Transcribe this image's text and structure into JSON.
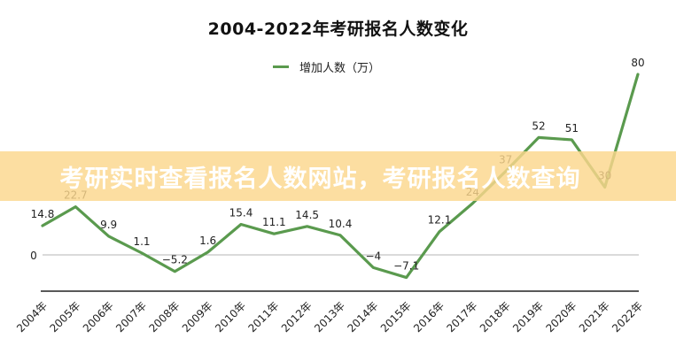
{
  "title": "2004-2022年考研报名人数变化",
  "legend": {
    "label": "增加人数（万）",
    "color": "#5a9a4e"
  },
  "banner": {
    "text": "考研实时查看报名人数网站，考研报名人数查询"
  },
  "axis": {
    "zero_label": "0"
  },
  "chart_data": {
    "type": "line",
    "title": "2004-2022年考研报名人数变化",
    "xlabel": "",
    "ylabel": "",
    "categories": [
      "2004年",
      "2005年",
      "2006年",
      "2007年",
      "2008年",
      "2009年",
      "2010年",
      "2011年",
      "2012年",
      "2013年",
      "2014年",
      "2015年",
      "2016年",
      "2017年",
      "2018年",
      "2019年",
      "2020年",
      "2021年",
      "2022年"
    ],
    "series": [
      {
        "name": "增加人数（万）",
        "values": [
          14.8,
          22.7,
          9.9,
          1.1,
          -5.2,
          1.6,
          15.4,
          11.1,
          14.5,
          10.4,
          -4,
          -7.1,
          12.1,
          24,
          37,
          52,
          51,
          30,
          80
        ]
      }
    ],
    "labels": [
      "14.8",
      "22.7",
      "9.9",
      "1.1",
      "−5.2",
      "1.6",
      "15.4",
      "11.1",
      "14.5",
      "10.4",
      "−4",
      "−7.1",
      "12.1",
      "24",
      "37",
      "52",
      "51",
      "30",
      "80"
    ],
    "ylim": [
      -10,
      85
    ],
    "grid": false,
    "zero_line": true,
    "legend_position": "top",
    "annotations": [
      "2021 value label partly hidden by overlay banner"
    ]
  }
}
